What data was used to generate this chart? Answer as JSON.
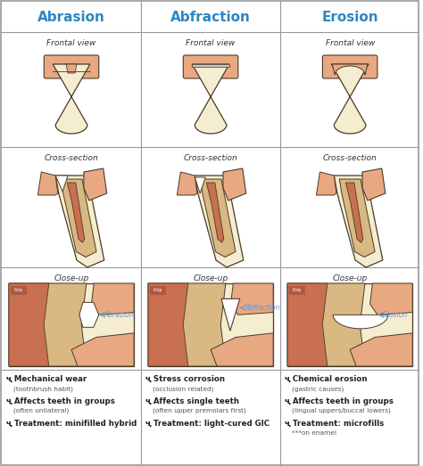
{
  "title_color": "#2E86C1",
  "border_color": "#999999",
  "background_color": "#ffffff",
  "columns": [
    "Abrasion",
    "Abfraction",
    "Erosion"
  ],
  "row_labels": [
    "Frontal view",
    "Cross-section",
    "Close-up"
  ],
  "col_notes": [
    [
      "Mechanical wear",
      "(toothbrush habit)",
      "Affects teeth in groups",
      "(often unilateral)",
      "Treatment: minifilled hybrid"
    ],
    [
      "Stress corrosion",
      "(occlusion related)",
      "Affects single teeth",
      "(often upper premolars first)",
      "Treatment: light-cured GIC"
    ],
    [
      "Chemical erosion",
      "(gastric causes)",
      "Affects teeth in groups",
      "(lingual uppers/buccal lowers)",
      "Treatment: microfills",
      "***on enamel"
    ]
  ],
  "label_color": "#5B9BD5",
  "gum_color": "#E8A882",
  "gum_dark": "#D4907A",
  "enamel_outer": "#F5EDD0",
  "enamel_inner": "#EDE0B8",
  "dentin_color": "#D9B882",
  "dentin_dark": "#C8A060",
  "pulp_color": "#C87050",
  "pulp_dark": "#B05840",
  "outline_color": "#4A3A2A",
  "closeup_bg_cream": "#F0E0B0",
  "closeup_bg_tan": "#D4A870",
  "wear_white": "#FFFFFF",
  "text_dark": "#222222",
  "text_sub": "#555555"
}
